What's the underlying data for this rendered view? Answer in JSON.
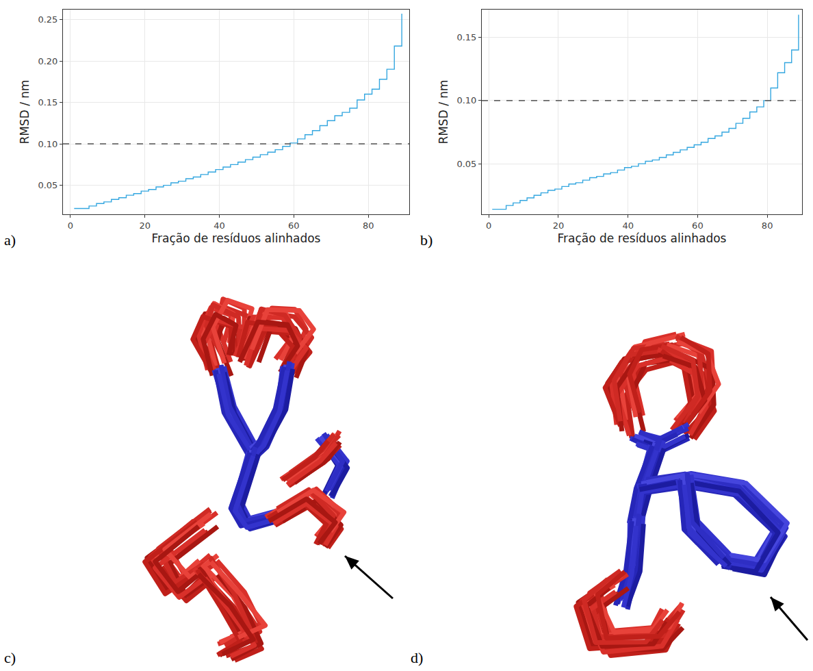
{
  "chart_data": [
    {
      "type": "line",
      "label": "a)",
      "x_label": "Fração de resíduos alinhados",
      "y_label": "RMSD / nm",
      "x": [
        1,
        3,
        5,
        7,
        9,
        11,
        13,
        15,
        17,
        19,
        21,
        23,
        25,
        27,
        29,
        31,
        33,
        35,
        37,
        39,
        41,
        43,
        45,
        47,
        49,
        51,
        53,
        55,
        57,
        59,
        61,
        63,
        65,
        67,
        69,
        71,
        73,
        75,
        77,
        79,
        81,
        83,
        85,
        87,
        89
      ],
      "values": [
        0.022,
        0.022,
        0.025,
        0.028,
        0.03,
        0.033,
        0.035,
        0.038,
        0.04,
        0.043,
        0.045,
        0.048,
        0.05,
        0.053,
        0.055,
        0.058,
        0.06,
        0.063,
        0.066,
        0.069,
        0.072,
        0.075,
        0.078,
        0.081,
        0.084,
        0.087,
        0.09,
        0.093,
        0.097,
        0.101,
        0.106,
        0.111,
        0.116,
        0.122,
        0.128,
        0.134,
        0.138,
        0.143,
        0.153,
        0.16,
        0.166,
        0.178,
        0.19,
        0.218,
        0.257
      ],
      "color": "#35a7e0",
      "line_style": "steps",
      "threshold": 0.1,
      "xlim": [
        -2,
        91
      ],
      "xticks": [
        0,
        20,
        40,
        60,
        80
      ],
      "ylim": [
        0.015,
        0.262
      ],
      "yticks": [
        0.05,
        {
          "value": 0.1,
          "label": "0.10"
        },
        0.15,
        {
          "value": 0.2,
          "label": "0.20"
        },
        0.25
      ],
      "grid": true
    },
    {
      "type": "line",
      "label": "b)",
      "x_label": "Fração de resíduos alinhados",
      "y_label": "RMSD / nm",
      "x": [
        1,
        3,
        5,
        7,
        9,
        11,
        13,
        15,
        17,
        19,
        21,
        23,
        25,
        27,
        29,
        31,
        33,
        35,
        37,
        39,
        41,
        43,
        45,
        47,
        49,
        51,
        53,
        55,
        57,
        59,
        61,
        63,
        65,
        67,
        69,
        71,
        73,
        75,
        77,
        79,
        81,
        83,
        85,
        87,
        89
      ],
      "values": [
        0.014,
        0.014,
        0.017,
        0.019,
        0.021,
        0.023,
        0.025,
        0.027,
        0.029,
        0.03,
        0.032,
        0.034,
        0.035,
        0.037,
        0.039,
        0.04,
        0.042,
        0.043,
        0.045,
        0.047,
        0.048,
        0.05,
        0.052,
        0.053,
        0.055,
        0.057,
        0.059,
        0.061,
        0.063,
        0.065,
        0.067,
        0.07,
        0.072,
        0.075,
        0.078,
        0.082,
        0.086,
        0.091,
        0.095,
        0.1,
        0.11,
        0.122,
        0.13,
        0.14,
        0.168
      ],
      "color": "#35a7e0",
      "line_style": "steps",
      "threshold": 0.1,
      "xlim": [
        -2,
        90
      ],
      "xticks": [
        0,
        20,
        40,
        60,
        80
      ],
      "ylim": [
        0.01,
        0.172
      ],
      "yticks": [
        0.05,
        {
          "value": 0.1,
          "label": "0.10"
        },
        0.15
      ],
      "grid": true
    }
  ],
  "panels": [
    {
      "label": "c)"
    },
    {
      "label": "d)"
    }
  ]
}
